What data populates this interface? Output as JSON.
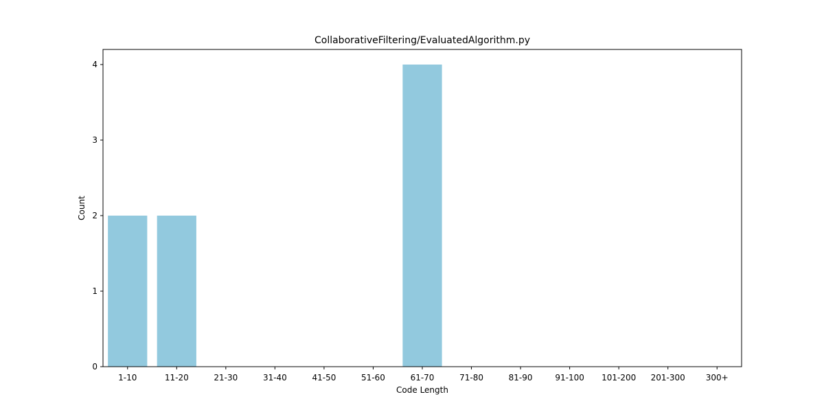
{
  "chart_data": {
    "type": "bar",
    "title": "CollaborativeFiltering/EvaluatedAlgorithm.py",
    "xlabel": "Code Length",
    "ylabel": "Count",
    "categories": [
      "1-10",
      "11-20",
      "21-30",
      "31-40",
      "41-50",
      "51-60",
      "61-70",
      "71-80",
      "81-90",
      "91-100",
      "101-200",
      "201-300",
      "300+"
    ],
    "values": [
      2,
      2,
      0,
      0,
      0,
      0,
      4,
      0,
      0,
      0,
      0,
      0,
      0
    ],
    "ylim": [
      0,
      4.2
    ],
    "yticks": [
      0,
      1,
      2,
      3,
      4
    ],
    "grid": false,
    "bar_color": "#92c9de"
  }
}
